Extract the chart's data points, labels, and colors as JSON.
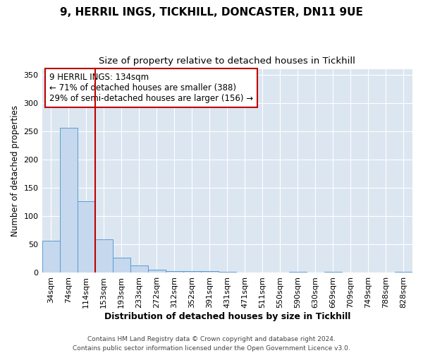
{
  "title1": "9, HERRIL INGS, TICKHILL, DONCASTER, DN11 9UE",
  "title2": "Size of property relative to detached houses in Tickhill",
  "xlabel": "Distribution of detached houses by size in Tickhill",
  "ylabel": "Number of detached properties",
  "categories": [
    "34sqm",
    "74sqm",
    "114sqm",
    "153sqm",
    "193sqm",
    "233sqm",
    "272sqm",
    "312sqm",
    "352sqm",
    "391sqm",
    "431sqm",
    "471sqm",
    "511sqm",
    "550sqm",
    "590sqm",
    "630sqm",
    "669sqm",
    "709sqm",
    "749sqm",
    "788sqm",
    "828sqm"
  ],
  "values": [
    57,
    257,
    127,
    59,
    27,
    13,
    5,
    3,
    3,
    3,
    2,
    0,
    0,
    0,
    2,
    0,
    2,
    0,
    0,
    0,
    2
  ],
  "bar_color": "#c5d8ed",
  "bar_edge_color": "#5b9bd5",
  "vline_x": 2.5,
  "vline_color": "#c00000",
  "annotation_text": "9 HERRIL INGS: 134sqm\n← 71% of detached houses are smaller (388)\n29% of semi-detached houses are larger (156) →",
  "annotation_box_facecolor": "#ffffff",
  "annotation_box_edgecolor": "#c00000",
  "ylim": [
    0,
    360
  ],
  "yticks": [
    0,
    50,
    100,
    150,
    200,
    250,
    300,
    350
  ],
  "footer": "Contains HM Land Registry data © Crown copyright and database right 2024.\nContains public sector information licensed under the Open Government Licence v3.0.",
  "plot_bg_color": "#dce6f1",
  "grid_color": "#ffffff",
  "title1_fontsize": 11,
  "title2_fontsize": 9.5,
  "xlabel_fontsize": 9,
  "ylabel_fontsize": 8.5,
  "tick_fontsize": 8,
  "annotation_fontsize": 8.5,
  "footer_fontsize": 6.5
}
